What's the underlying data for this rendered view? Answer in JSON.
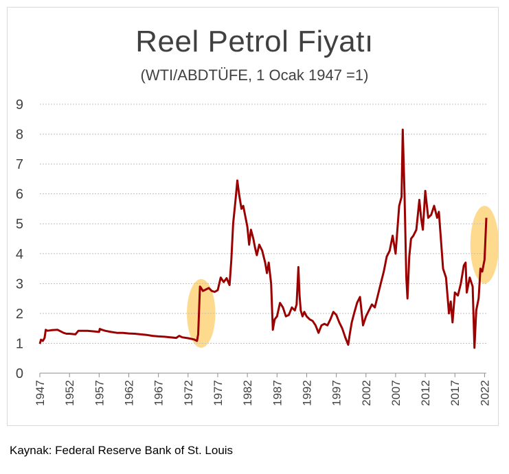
{
  "chart_data": {
    "type": "line",
    "title": "Reel Petrol Fiyatı",
    "subtitle": "(WTI/ABDTÜFE, 1 Ocak 1947 =1)",
    "xlim": [
      1947,
      2022.3
    ],
    "ylim": [
      0,
      9
    ],
    "yticks": [
      0,
      1,
      2,
      3,
      4,
      5,
      6,
      7,
      8,
      9
    ],
    "xticks": [
      1947,
      1952,
      1957,
      1962,
      1967,
      1972,
      1977,
      1982,
      1987,
      1992,
      1997,
      2002,
      2007,
      2012,
      2017,
      2022
    ],
    "grid": true,
    "legend": "none",
    "line_color": "#9b0000",
    "highlight_color": "#fdd47a",
    "highlights": [
      {
        "x": 1974.2,
        "y": 2.0,
        "rx_years": 2.4,
        "ry": 1.15
      },
      {
        "x": 2022.0,
        "y": 4.3,
        "rx_years": 2.4,
        "ry": 1.3
      }
    ],
    "series": [
      {
        "name": "",
        "x": [
          1947,
          1947.2,
          1947.5,
          1947.8,
          1948,
          1948.3,
          1949,
          1950,
          1951,
          1951.5,
          1952,
          1953,
          1953.5,
          1954,
          1955,
          1956,
          1957,
          1957.1,
          1957.5,
          1958,
          1959,
          1960,
          1961,
          1962,
          1963,
          1964,
          1965,
          1966,
          1967,
          1968,
          1969,
          1970,
          1970.5,
          1971,
          1972,
          1973,
          1973.5,
          1973.7,
          1974,
          1974.1,
          1974.5,
          1975,
          1975.5,
          1976,
          1976.5,
          1977,
          1977.5,
          1978,
          1978.5,
          1979,
          1979.3,
          1979.6,
          1980,
          1980.3,
          1980.6,
          1981,
          1981.3,
          1981.6,
          1982,
          1982.3,
          1982.6,
          1983,
          1983.3,
          1983.6,
          1984,
          1984.5,
          1985,
          1985.3,
          1985.6,
          1986,
          1986.3,
          1986.6,
          1987,
          1987.5,
          1988,
          1988.5,
          1989,
          1989.5,
          1990,
          1990.3,
          1990.6,
          1990.8,
          1991,
          1991.3,
          1991.6,
          1992,
          1992.5,
          1993,
          1993.5,
          1994,
          1994.5,
          1995,
          1995.5,
          1996,
          1996.5,
          1997,
          1997.5,
          1998,
          1998.5,
          1999,
          1999.3,
          1999.6,
          2000,
          2000.5,
          2001,
          2001.5,
          2002,
          2002.5,
          2003,
          2003.5,
          2004,
          2004.5,
          2005,
          2005.5,
          2006,
          2006.5,
          2007,
          2007.3,
          2007.6,
          2008,
          2008.2,
          2008.5,
          2008.8,
          2009,
          2009.3,
          2009.6,
          2010,
          2010.5,
          2011,
          2011.3,
          2011.6,
          2012,
          2012.5,
          2013,
          2013.5,
          2014,
          2014.3,
          2014.6,
          2015,
          2015.5,
          2016,
          2016.3,
          2016.6,
          2017,
          2017.5,
          2018,
          2018.5,
          2018.8,
          2019,
          2019.5,
          2020,
          2020.3,
          2020.6,
          2021,
          2021.3,
          2021.6,
          2022,
          2022.3
        ],
        "values": [
          0.98,
          1.12,
          1.08,
          1.18,
          1.45,
          1.42,
          1.44,
          1.45,
          1.35,
          1.32,
          1.32,
          1.3,
          1.42,
          1.42,
          1.42,
          1.4,
          1.38,
          1.48,
          1.45,
          1.42,
          1.38,
          1.35,
          1.35,
          1.33,
          1.32,
          1.3,
          1.28,
          1.25,
          1.23,
          1.22,
          1.2,
          1.18,
          1.25,
          1.2,
          1.17,
          1.13,
          1.08,
          1.3,
          2.9,
          2.88,
          2.75,
          2.8,
          2.85,
          2.75,
          2.72,
          2.78,
          3.2,
          3.05,
          3.18,
          2.95,
          3.8,
          5.0,
          5.8,
          6.45,
          6.0,
          5.5,
          5.6,
          5.3,
          4.9,
          4.3,
          4.8,
          4.5,
          4.2,
          3.95,
          4.3,
          4.1,
          3.7,
          3.35,
          3.7,
          3.0,
          1.45,
          1.8,
          1.9,
          2.35,
          2.2,
          1.9,
          1.95,
          2.2,
          2.1,
          2.3,
          3.55,
          2.6,
          2.1,
          1.9,
          2.05,
          1.9,
          1.8,
          1.75,
          1.6,
          1.35,
          1.6,
          1.65,
          1.6,
          1.8,
          2.05,
          1.95,
          1.7,
          1.5,
          1.2,
          0.95,
          1.35,
          1.7,
          2.0,
          2.35,
          2.55,
          1.6,
          1.9,
          2.1,
          2.3,
          2.2,
          2.6,
          3.0,
          3.4,
          3.9,
          4.1,
          4.6,
          4.0,
          4.8,
          5.6,
          5.9,
          8.15,
          6.0,
          3.2,
          2.5,
          3.9,
          4.5,
          4.6,
          4.8,
          5.8,
          5.2,
          4.8,
          6.1,
          5.2,
          5.3,
          5.6,
          5.2,
          5.4,
          4.6,
          3.5,
          3.2,
          2.0,
          2.4,
          1.7,
          2.7,
          2.6,
          3.0,
          3.6,
          3.7,
          2.7,
          3.2,
          2.9,
          0.85,
          2.1,
          2.5,
          3.5,
          3.4,
          3.8,
          5.2
        ]
      }
    ]
  },
  "source": "Kaynak: Federal Reserve Bank of St. Louis"
}
